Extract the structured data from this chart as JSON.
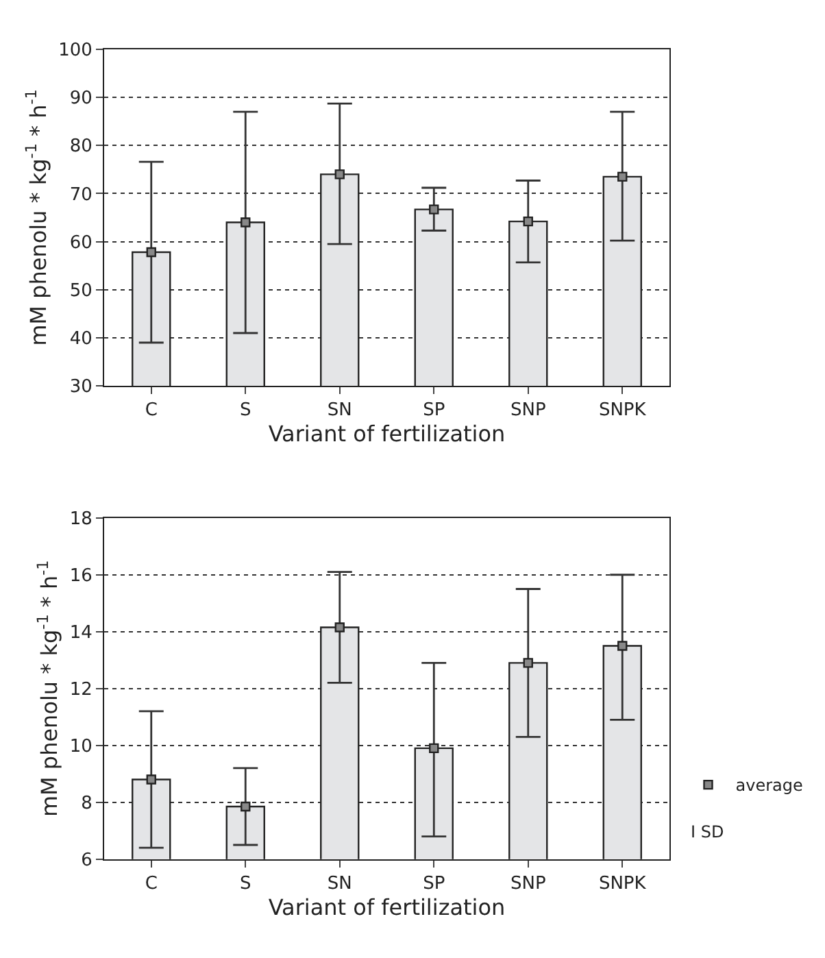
{
  "chart_data": [
    {
      "type": "bar",
      "xlabel": "Variant of fertilization",
      "ylabel": "mM phenolu * kg$^{-1}$ * h$^{-1}$",
      "categories": [
        "C",
        "S",
        "SN",
        "SP",
        "SNP",
        "SNPK"
      ],
      "ylim": [
        30,
        100
      ],
      "yticks": [
        30,
        40,
        50,
        60,
        70,
        80,
        90,
        100
      ],
      "grid": "y",
      "legend": false,
      "marker": "square",
      "series": [
        {
          "color": "#e4e5e7",
          "values": [
            57.8,
            64,
            74,
            66.7,
            64.2,
            73.5
          ]
        },
        {
          "type": "scatter",
          "color": "#888888",
          "values": [
            57.8,
            64,
            74,
            66.7,
            64.2,
            73.5
          ],
          "errors": [
            [
              39,
              76.6
            ],
            [
              41,
              87
            ],
            [
              59.5,
              88.7
            ],
            [
              62.3,
              71.2
            ],
            [
              55.7,
              72.7
            ],
            [
              60.2,
              87
            ]
          ]
        }
      ]
    },
    {
      "type": "bar",
      "xlabel": "Variant of fertilization",
      "ylabel": "mM phenolu * kg$^{-1}$ * h$^{-1}$",
      "categories": [
        "C",
        "S",
        "SN",
        "SP",
        "SNP",
        "SNPK"
      ],
      "ylim": [
        6,
        18
      ],
      "yticks": [
        6,
        8,
        10,
        12,
        14,
        16,
        18
      ],
      "grid": "y",
      "legend": "bottom right",
      "marker": "square",
      "annotations": [
        "I SD"
      ],
      "series": [
        {
          "color": "#e4e5e7",
          "values": [
            8.8,
            7.85,
            14.15,
            9.9,
            12.9,
            13.5
          ]
        },
        {
          "type": "scatter",
          "name": "average",
          "color": "#888888",
          "values": [
            8.8,
            7.85,
            14.15,
            9.9,
            12.9,
            13.5
          ],
          "errors": [
            [
              6.4,
              11.2
            ],
            [
              6.5,
              9.2
            ],
            [
              12.2,
              16.1
            ],
            [
              6.8,
              12.9
            ],
            [
              10.3,
              15.5
            ],
            [
              10.9,
              16.0
            ]
          ]
        }
      ]
    }
  ]
}
